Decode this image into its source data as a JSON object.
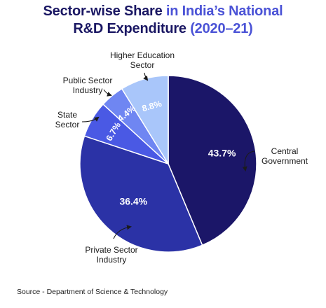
{
  "title": {
    "part1": "Sector-wise Share ",
    "part2": "in India’s National",
    "line2a": "R&D Expenditure ",
    "line2b": "(2020–21)"
  },
  "source": "Source - Department of Science & Technology",
  "colors": {
    "title_dark": "#1a1763",
    "title_accent": "#4b53d6",
    "arrow": "#1b1b1b"
  },
  "chart_data": {
    "type": "pie",
    "slices": [
      {
        "label": "Central Government",
        "label_lines": [
          "Central",
          "Government"
        ],
        "value": 43.7,
        "value_label": "43.7%",
        "color": "#1b1668"
      },
      {
        "label": "Private Sector Industry",
        "label_lines": [
          "Private Sector",
          "Industry"
        ],
        "value": 36.4,
        "value_label": "36.4%",
        "color": "#2b32a6"
      },
      {
        "label": "State Sector",
        "label_lines": [
          "State",
          "Sector"
        ],
        "value": 6.7,
        "value_label": "6.7%",
        "color": "#4a59e4"
      },
      {
        "label": "Public Sector Industry",
        "label_lines": [
          "Public Sector",
          "Industry"
        ],
        "value": 4.4,
        "value_label": "4.4%",
        "color": "#6f86f2"
      },
      {
        "label": "Higher Education Sector",
        "label_lines": [
          "Higher Education",
          "Sector"
        ],
        "value": 8.8,
        "value_label": "8.8%",
        "color": "#a9c6fa"
      }
    ]
  }
}
